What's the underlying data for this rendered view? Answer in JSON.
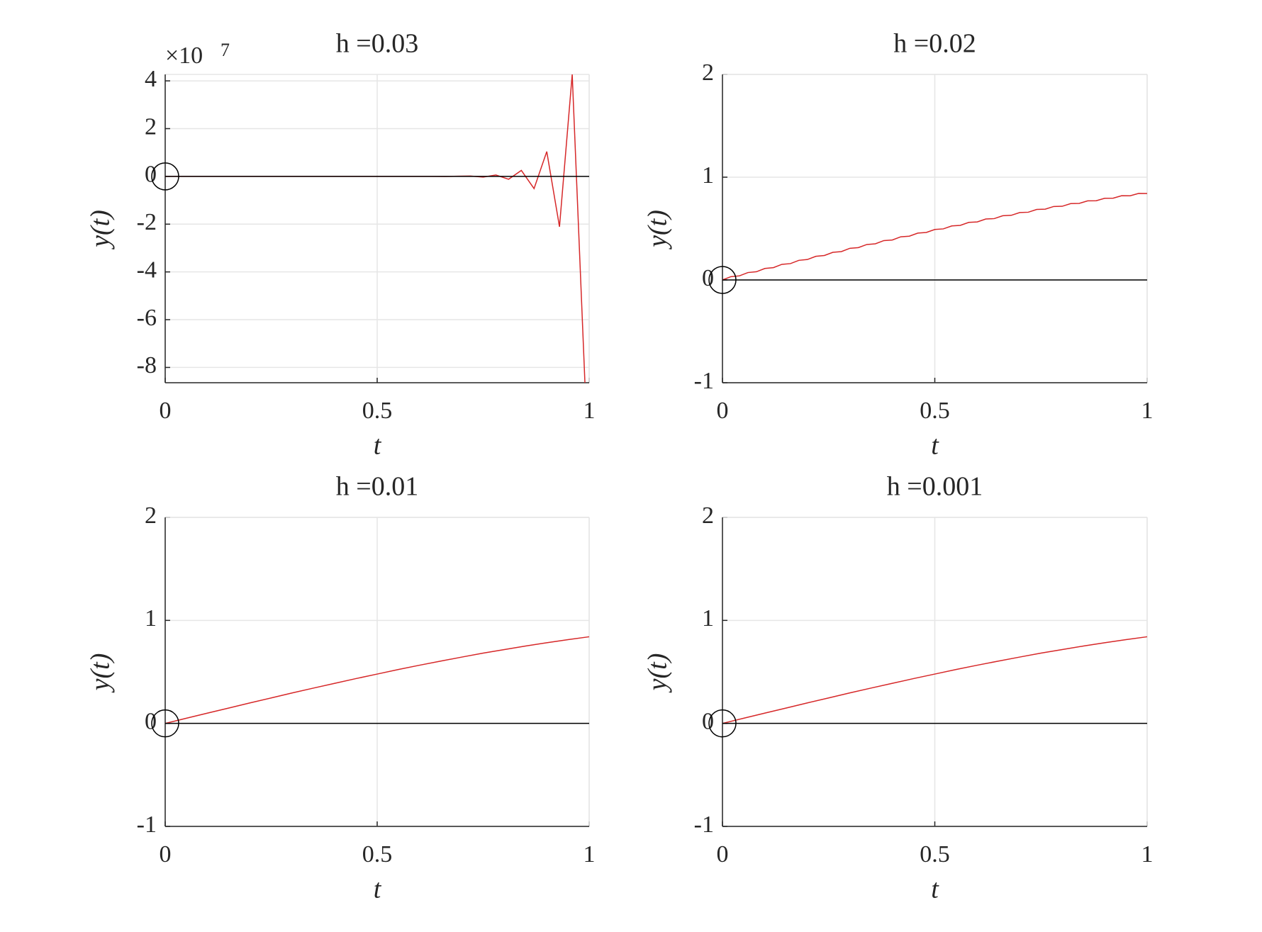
{
  "chart_data": [
    {
      "type": "line",
      "title": "h =0.03",
      "xlabel": "t",
      "ylabel": "y(t)",
      "y_exponent_label": "×10",
      "y_exponent": 7,
      "xlim": [
        0,
        1
      ],
      "xticks": [
        0,
        0.5,
        1
      ],
      "ylim": [
        -8.64,
        4.27
      ],
      "yticks": [
        -8,
        -6,
        -4,
        -2,
        0,
        2,
        4
      ],
      "grid": true,
      "series": [
        {
          "color": "#d62728",
          "x": [
            0,
            0.03,
            0.06,
            0.09,
            0.12,
            0.15,
            0.18,
            0.21,
            0.24,
            0.27,
            0.3,
            0.33,
            0.36,
            0.39,
            0.42,
            0.45,
            0.48,
            0.51,
            0.54,
            0.57,
            0.6,
            0.63,
            0.66,
            0.69,
            0.72,
            0.75,
            0.78,
            0.81,
            0.84,
            0.87,
            0.9,
            0.93,
            0.96,
            0.99
          ],
          "values": [
            0,
            0,
            0,
            0,
            0,
            0,
            0,
            0,
            0,
            0,
            0,
            0,
            0,
            0,
            0,
            0,
            0,
            0,
            0,
            0,
            0,
            0,
            -0.004,
            0.007,
            0.015,
            -0.03,
            0.06,
            -0.12,
            0.25,
            -0.51,
            1.04,
            -2.11,
            4.27,
            -8.64
          ]
        },
        {
          "color": "#000000",
          "x": [
            0,
            1
          ],
          "values": [
            0,
            0
          ]
        },
        {
          "color": "#000000",
          "marker": "o",
          "x": [
            0
          ],
          "values": [
            0
          ]
        }
      ]
    },
    {
      "type": "line",
      "title": "h =0.02",
      "xlabel": "t",
      "ylabel": "y(t)",
      "xlim": [
        0,
        1
      ],
      "xticks": [
        0,
        0.5,
        1
      ],
      "ylim": [
        -1,
        2
      ],
      "yticks": [
        -1,
        0,
        1,
        2
      ],
      "grid": true,
      "series": [
        {
          "color": "#d62728",
          "x": [
            0,
            0.02,
            0.04,
            0.06,
            0.08,
            0.1,
            0.12,
            0.14,
            0.16,
            0.18,
            0.2,
            0.22,
            0.24,
            0.26,
            0.28,
            0.3,
            0.32,
            0.34,
            0.36,
            0.38,
            0.4,
            0.42,
            0.44,
            0.46,
            0.48,
            0.5,
            0.52,
            0.54,
            0.56,
            0.58,
            0.6,
            0.62,
            0.64,
            0.66,
            0.68,
            0.7,
            0.72,
            0.74,
            0.76,
            0.78,
            0.8,
            0.82,
            0.84,
            0.86,
            0.88,
            0.9,
            0.92,
            0.94,
            0.96,
            0.98,
            1
          ],
          "values": [
            0,
            0.032,
            0.04,
            0.072,
            0.08,
            0.112,
            0.12,
            0.152,
            0.159,
            0.191,
            0.199,
            0.23,
            0.238,
            0.269,
            0.276,
            0.308,
            0.315,
            0.345,
            0.352,
            0.383,
            0.389,
            0.42,
            0.426,
            0.456,
            0.462,
            0.491,
            0.497,
            0.526,
            0.531,
            0.56,
            0.565,
            0.593,
            0.597,
            0.625,
            0.629,
            0.656,
            0.659,
            0.686,
            0.689,
            0.715,
            0.717,
            0.743,
            0.745,
            0.77,
            0.771,
            0.795,
            0.796,
            0.82,
            0.819,
            0.842,
            0.841
          ]
        },
        {
          "color": "#000000",
          "x": [
            0,
            1
          ],
          "values": [
            0,
            0
          ]
        },
        {
          "color": "#000000",
          "marker": "o",
          "x": [
            0
          ],
          "values": [
            0
          ]
        }
      ]
    },
    {
      "type": "line",
      "title": "h =0.01",
      "xlabel": "t",
      "ylabel": "y(t)",
      "xlim": [
        0,
        1
      ],
      "xticks": [
        0,
        0.5,
        1
      ],
      "ylim": [
        -1,
        2
      ],
      "yticks": [
        -1,
        0,
        1,
        2
      ],
      "grid": true,
      "series": [
        {
          "color": "#d62728",
          "x": [
            0,
            0.05,
            0.1,
            0.15,
            0.2,
            0.25,
            0.3,
            0.35,
            0.4,
            0.45,
            0.5,
            0.55,
            0.6,
            0.65,
            0.7,
            0.75,
            0.8,
            0.85,
            0.9,
            0.95,
            1
          ],
          "values": [
            0,
            0.05,
            0.1,
            0.149,
            0.199,
            0.247,
            0.296,
            0.343,
            0.389,
            0.435,
            0.479,
            0.523,
            0.565,
            0.605,
            0.644,
            0.682,
            0.717,
            0.751,
            0.783,
            0.813,
            0.841
          ]
        },
        {
          "color": "#000000",
          "x": [
            0,
            1
          ],
          "values": [
            0,
            0
          ]
        },
        {
          "color": "#000000",
          "marker": "o",
          "x": [
            0
          ],
          "values": [
            0
          ]
        }
      ]
    },
    {
      "type": "line",
      "title": "h =0.001",
      "xlabel": "t",
      "ylabel": "y(t)",
      "xlim": [
        0,
        1
      ],
      "xticks": [
        0,
        0.5,
        1
      ],
      "ylim": [
        -1,
        2
      ],
      "yticks": [
        -1,
        0,
        1,
        2
      ],
      "grid": true,
      "series": [
        {
          "color": "#d62728",
          "x": [
            0,
            0.05,
            0.1,
            0.15,
            0.2,
            0.25,
            0.3,
            0.35,
            0.4,
            0.45,
            0.5,
            0.55,
            0.6,
            0.65,
            0.7,
            0.75,
            0.8,
            0.85,
            0.9,
            0.95,
            1
          ],
          "values": [
            0,
            0.05,
            0.1,
            0.149,
            0.199,
            0.247,
            0.296,
            0.343,
            0.389,
            0.435,
            0.479,
            0.523,
            0.565,
            0.605,
            0.644,
            0.682,
            0.717,
            0.751,
            0.783,
            0.813,
            0.841
          ]
        },
        {
          "color": "#000000",
          "x": [
            0,
            1
          ],
          "values": [
            0,
            0
          ]
        },
        {
          "color": "#000000",
          "marker": "o",
          "x": [
            0
          ],
          "values": [
            0
          ]
        }
      ]
    }
  ]
}
